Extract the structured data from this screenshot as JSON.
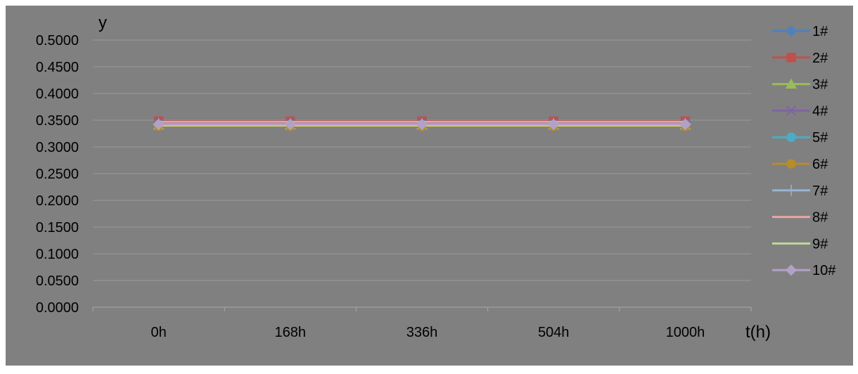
{
  "colors": {
    "chart_background": "#808080",
    "gridline": "#9a9a9a",
    "axis": "#a8a8a8",
    "text": "#000000"
  },
  "chart_data": {
    "type": "line",
    "xlabel": "t(h)",
    "ylabel": "y",
    "categories": [
      "0h",
      "168h",
      "336h",
      "504h",
      "1000h"
    ],
    "ylim": [
      0,
      0.5
    ],
    "yticks": [
      "0.0000",
      "0.0500",
      "0.1000",
      "0.1500",
      "0.2000",
      "0.2500",
      "0.3000",
      "0.3500",
      "0.4000",
      "0.4500",
      "0.5000"
    ],
    "grid": true,
    "legend_position": "right",
    "series": [
      {
        "name": "1#",
        "color": "#4f81bd",
        "marker": "diamond",
        "values": [
          0.344,
          0.344,
          0.344,
          0.344,
          0.344
        ]
      },
      {
        "name": "2#",
        "color": "#c0504d",
        "marker": "square",
        "values": [
          0.348,
          0.348,
          0.348,
          0.348,
          0.348
        ]
      },
      {
        "name": "3#",
        "color": "#9bbb59",
        "marker": "triangle",
        "values": [
          0.341,
          0.341,
          0.341,
          0.341,
          0.341
        ]
      },
      {
        "name": "4#",
        "color": "#8064a2",
        "marker": "x",
        "values": [
          0.344,
          0.344,
          0.344,
          0.344,
          0.344
        ]
      },
      {
        "name": "5#",
        "color": "#4bacc6",
        "marker": "circle",
        "values": [
          0.342,
          0.342,
          0.342,
          0.342,
          0.342
        ]
      },
      {
        "name": "6#",
        "color": "#b68c2c",
        "marker": "circle",
        "values": [
          0.339,
          0.339,
          0.339,
          0.339,
          0.339
        ]
      },
      {
        "name": "7#",
        "color": "#95b3d7",
        "marker": "plus",
        "values": [
          0.343,
          0.343,
          0.343,
          0.343,
          0.343
        ]
      },
      {
        "name": "8#",
        "color": "#e6a6a3",
        "marker": "none",
        "values": [
          0.347,
          0.347,
          0.347,
          0.347,
          0.347
        ]
      },
      {
        "name": "9#",
        "color": "#c3d69b",
        "marker": "none",
        "values": [
          0.34,
          0.34,
          0.34,
          0.34,
          0.34
        ]
      },
      {
        "name": "10#",
        "color": "#b2a1c7",
        "marker": "diamond",
        "values": [
          0.342,
          0.342,
          0.342,
          0.342,
          0.342
        ]
      }
    ]
  }
}
